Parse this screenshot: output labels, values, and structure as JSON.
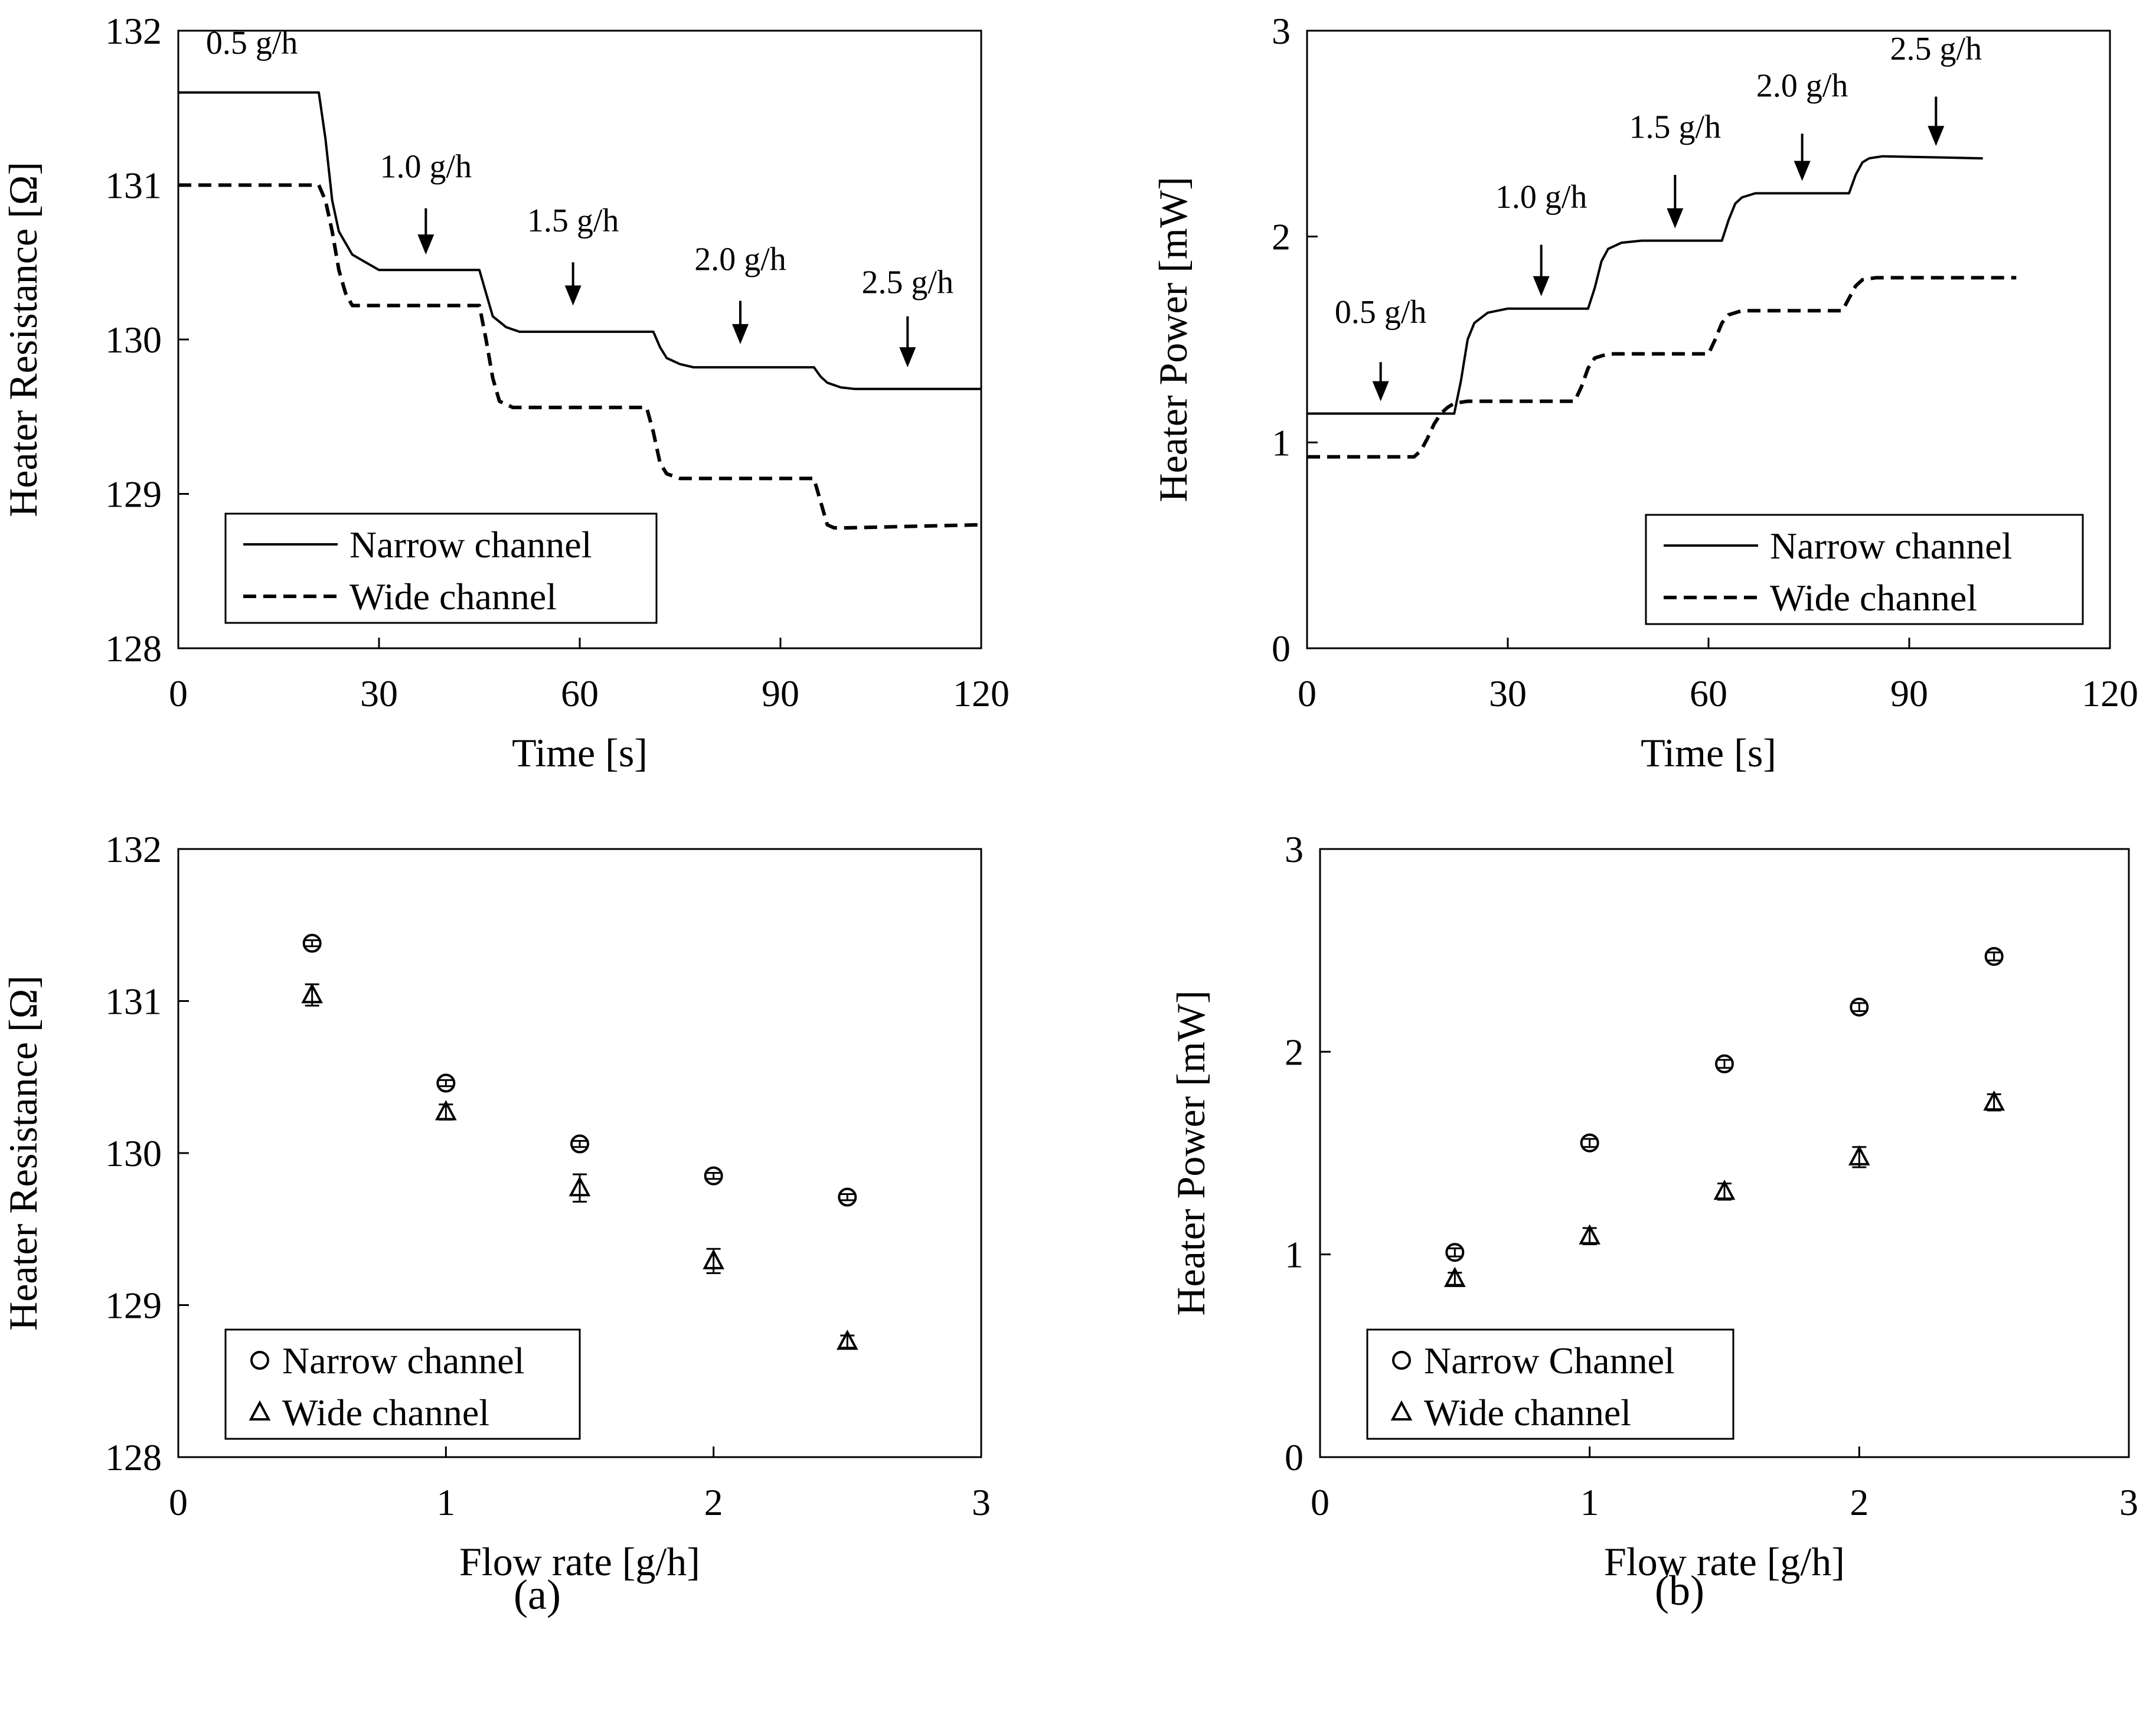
{
  "panel_labels": [
    "(a)",
    "(b)"
  ],
  "chart_data": [
    {
      "id": "a-top",
      "type": "line",
      "xlabel": "Time [s]",
      "ylabel": "Heater Resistance [Ω]",
      "xlim": [
        0,
        120
      ],
      "ylim": [
        128,
        132
      ],
      "xticks": [
        0,
        30,
        60,
        90,
        120
      ],
      "yticks": [
        128,
        129,
        130,
        131,
        132
      ],
      "grid": false,
      "legend_position": "bottom-left",
      "series": [
        {
          "name": "Narrow channel",
          "style": "solid",
          "x": [
            0,
            21,
            22,
            23,
            24,
            26,
            28,
            30,
            45,
            46,
            47,
            49,
            51,
            71,
            72,
            73,
            75,
            77,
            95,
            96,
            97,
            99,
            101,
            120
          ],
          "y": [
            131.6,
            131.6,
            131.3,
            130.9,
            130.7,
            130.55,
            130.5,
            130.45,
            130.45,
            130.3,
            130.15,
            130.08,
            130.05,
            130.05,
            129.95,
            129.88,
            129.84,
            129.82,
            129.82,
            129.76,
            129.72,
            129.69,
            129.68,
            129.68
          ]
        },
        {
          "name": "Wide channel",
          "style": "dashed",
          "x": [
            0,
            21,
            22,
            23,
            24,
            25,
            26,
            45,
            46,
            47,
            48,
            50,
            70,
            71,
            72,
            73,
            75,
            95,
            96,
            97,
            98,
            100,
            120
          ],
          "y": [
            131.0,
            131.0,
            130.9,
            130.7,
            130.45,
            130.3,
            130.22,
            130.22,
            130.0,
            129.75,
            129.6,
            129.56,
            129.56,
            129.4,
            129.2,
            129.13,
            129.1,
            129.1,
            128.95,
            128.8,
            128.78,
            128.78,
            128.8
          ]
        }
      ],
      "annotations": [
        {
          "text": "0.5 g/h",
          "x": 11,
          "y": 131.85,
          "arrow": false
        },
        {
          "text": "1.0 g/h",
          "x": 37,
          "y": 131.05,
          "arrow": true,
          "arrow_from": 130.85,
          "arrow_to": 130.55
        },
        {
          "text": "1.5 g/h",
          "x": 59,
          "y": 130.7,
          "arrow": true,
          "arrow_from": 130.5,
          "arrow_to": 130.22
        },
        {
          "text": "2.0 g/h",
          "x": 84,
          "y": 130.45,
          "arrow": true,
          "arrow_from": 130.25,
          "arrow_to": 129.97
        },
        {
          "text": "2.5 g/h",
          "x": 109,
          "y": 130.3,
          "arrow": true,
          "arrow_from": 130.15,
          "arrow_to": 129.82
        }
      ]
    },
    {
      "id": "b-top",
      "type": "line",
      "xlabel": "Time [s]",
      "ylabel": "Heater Power [mW]",
      "xlim": [
        0,
        120
      ],
      "ylim": [
        0,
        3
      ],
      "xticks": [
        0,
        30,
        60,
        90,
        120
      ],
      "yticks": [
        0,
        1,
        2,
        3
      ],
      "grid": false,
      "legend_position": "bottom-right",
      "series": [
        {
          "name": "Narrow channel",
          "style": "solid",
          "x": [
            0,
            22,
            23,
            24,
            25,
            27,
            30,
            42,
            43,
            44,
            45,
            47,
            50,
            62,
            63,
            64,
            65,
            67,
            70,
            81,
            82,
            83,
            84,
            86,
            101
          ],
          "y": [
            1.14,
            1.14,
            1.3,
            1.5,
            1.58,
            1.63,
            1.65,
            1.65,
            1.75,
            1.88,
            1.94,
            1.97,
            1.98,
            1.98,
            2.08,
            2.16,
            2.19,
            2.21,
            2.21,
            2.21,
            2.3,
            2.36,
            2.38,
            2.39,
            2.38
          ]
        },
        {
          "name": "Wide channel",
          "style": "dashed",
          "x": [
            0,
            16,
            17,
            18,
            19,
            20,
            21,
            22,
            24,
            40,
            41,
            42,
            43,
            45,
            60,
            61,
            62,
            63,
            65,
            80,
            81,
            82,
            83,
            85,
            106
          ],
          "y": [
            0.93,
            0.93,
            0.96,
            1.02,
            1.09,
            1.14,
            1.17,
            1.19,
            1.2,
            1.2,
            1.27,
            1.36,
            1.41,
            1.43,
            1.43,
            1.5,
            1.58,
            1.62,
            1.64,
            1.64,
            1.7,
            1.76,
            1.79,
            1.8,
            1.8
          ]
        }
      ],
      "annotations": [
        {
          "text": "0.5 g/h",
          "x": 11,
          "y": 1.58,
          "arrow": true,
          "arrow_from": 1.39,
          "arrow_to": 1.2
        },
        {
          "text": "1.0 g/h",
          "x": 35,
          "y": 2.14,
          "arrow": true,
          "arrow_from": 1.96,
          "arrow_to": 1.71
        },
        {
          "text": "1.5 g/h",
          "x": 55,
          "y": 2.48,
          "arrow": true,
          "arrow_from": 2.3,
          "arrow_to": 2.04
        },
        {
          "text": "2.0 g/h",
          "x": 74,
          "y": 2.68,
          "arrow": true,
          "arrow_from": 2.5,
          "arrow_to": 2.27
        },
        {
          "text": "2.5 g/h",
          "x": 94,
          "y": 2.86,
          "arrow": true,
          "arrow_from": 2.68,
          "arrow_to": 2.44
        }
      ]
    },
    {
      "id": "a-bottom",
      "type": "scatter",
      "xlabel": "Flow rate [g/h]",
      "ylabel": "Heater Resistance [Ω]",
      "xlim": [
        0,
        3
      ],
      "ylim": [
        128,
        132
      ],
      "xticks": [
        0,
        1,
        2,
        3
      ],
      "yticks": [
        128,
        129,
        130,
        131,
        132
      ],
      "grid": false,
      "legend_position": "bottom-left",
      "series": [
        {
          "name": "Narrow channel",
          "marker": "circle",
          "x": [
            0.5,
            1.0,
            1.5,
            2.0,
            2.5
          ],
          "y": [
            131.38,
            130.46,
            130.06,
            129.85,
            129.71
          ],
          "err": [
            0.02,
            0.02,
            0.02,
            0.02,
            0.02
          ]
        },
        {
          "name": "Wide channel",
          "marker": "triangle",
          "x": [
            0.5,
            1.0,
            1.5,
            2.0,
            2.5
          ],
          "y": [
            131.04,
            130.27,
            129.77,
            129.29,
            128.76
          ],
          "err": [
            0.07,
            0.05,
            0.09,
            0.08,
            0.04
          ]
        }
      ]
    },
    {
      "id": "b-bottom",
      "type": "scatter",
      "xlabel": "Flow rate [g/h]",
      "ylabel": "Heater Power [mW]",
      "xlim": [
        0,
        3
      ],
      "ylim": [
        0,
        3
      ],
      "xticks": [
        0,
        1,
        2,
        3
      ],
      "yticks": [
        0,
        1,
        2,
        3
      ],
      "grid": false,
      "legend_position": "bottom-left",
      "series": [
        {
          "name": "Narrow Channel",
          "marker": "circle",
          "x": [
            0.5,
            1.0,
            1.5,
            2.0,
            2.5
          ],
          "y": [
            1.01,
            1.55,
            1.94,
            2.22,
            2.47
          ],
          "err": [
            0.02,
            0.02,
            0.02,
            0.02,
            0.02
          ]
        },
        {
          "name": "Wide channel",
          "marker": "triangle",
          "x": [
            0.5,
            1.0,
            1.5,
            2.0,
            2.5
          ],
          "y": [
            0.88,
            1.09,
            1.31,
            1.48,
            1.75
          ],
          "err": [
            0.03,
            0.04,
            0.04,
            0.05,
            0.04
          ]
        }
      ]
    }
  ]
}
